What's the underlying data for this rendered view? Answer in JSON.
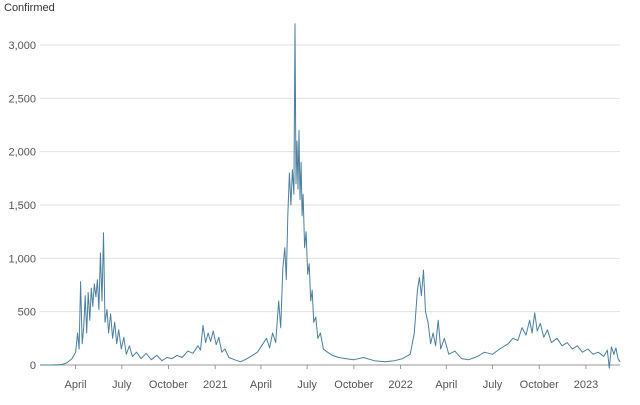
{
  "chart_data": {
    "type": "line",
    "ylabel": "Confirmed",
    "ylim": [
      0,
      3000
    ],
    "y_ticks": [
      {
        "value": 0,
        "label": "0"
      },
      {
        "value": 500,
        "label": "500"
      },
      {
        "value": 1000,
        "label": "1,000"
      },
      {
        "value": 1500,
        "label": "1,500"
      },
      {
        "value": 2000,
        "label": "2,000"
      },
      {
        "value": 2500,
        "label": "2,500"
      },
      {
        "value": 3000,
        "label": "3,000"
      }
    ],
    "xlim": [
      "2020-01-22",
      "2023-03-09"
    ],
    "x_ticks": [
      {
        "date": "2020-04-01",
        "label": "April"
      },
      {
        "date": "2020-07-01",
        "label": "July"
      },
      {
        "date": "2020-10-01",
        "label": "October"
      },
      {
        "date": "2021-01-01",
        "label": "2021"
      },
      {
        "date": "2021-04-01",
        "label": "April"
      },
      {
        "date": "2021-07-01",
        "label": "July"
      },
      {
        "date": "2021-10-01",
        "label": "October"
      },
      {
        "date": "2022-01-01",
        "label": "2022"
      },
      {
        "date": "2022-04-01",
        "label": "April"
      },
      {
        "date": "2022-07-01",
        "label": "July"
      },
      {
        "date": "2022-10-01",
        "label": "October"
      },
      {
        "date": "2023-01-01",
        "label": "2023"
      }
    ],
    "grid": "horizontal",
    "line_color": "#4c7f9f",
    "series": [
      {
        "values": [
          [
            "2020-01-22",
            0
          ],
          [
            "2020-02-15",
            0
          ],
          [
            "2020-03-05",
            5
          ],
          [
            "2020-03-15",
            20
          ],
          [
            "2020-03-25",
            60
          ],
          [
            "2020-04-01",
            120
          ],
          [
            "2020-04-05",
            300
          ],
          [
            "2020-04-08",
            150
          ],
          [
            "2020-04-11",
            780
          ],
          [
            "2020-04-14",
            200
          ],
          [
            "2020-04-17",
            350
          ],
          [
            "2020-04-20",
            650
          ],
          [
            "2020-04-23",
            300
          ],
          [
            "2020-04-26",
            680
          ],
          [
            "2020-04-29",
            420
          ],
          [
            "2020-05-02",
            720
          ],
          [
            "2020-05-05",
            550
          ],
          [
            "2020-05-08",
            760
          ],
          [
            "2020-05-11",
            640
          ],
          [
            "2020-05-14",
            800
          ],
          [
            "2020-05-17",
            520
          ],
          [
            "2020-05-20",
            1050
          ],
          [
            "2020-05-23",
            600
          ],
          [
            "2020-05-26",
            1240
          ],
          [
            "2020-05-29",
            400
          ],
          [
            "2020-06-02",
            520
          ],
          [
            "2020-06-05",
            300
          ],
          [
            "2020-06-09",
            480
          ],
          [
            "2020-06-13",
            250
          ],
          [
            "2020-06-17",
            400
          ],
          [
            "2020-06-21",
            200
          ],
          [
            "2020-06-25",
            330
          ],
          [
            "2020-06-30",
            150
          ],
          [
            "2020-07-05",
            260
          ],
          [
            "2020-07-10",
            100
          ],
          [
            "2020-07-16",
            180
          ],
          [
            "2020-07-22",
            80
          ],
          [
            "2020-07-30",
            120
          ],
          [
            "2020-08-08",
            60
          ],
          [
            "2020-08-18",
            110
          ],
          [
            "2020-08-28",
            50
          ],
          [
            "2020-09-08",
            90
          ],
          [
            "2020-09-18",
            40
          ],
          [
            "2020-09-28",
            70
          ],
          [
            "2020-10-08",
            60
          ],
          [
            "2020-10-18",
            90
          ],
          [
            "2020-10-28",
            70
          ],
          [
            "2020-11-08",
            130
          ],
          [
            "2020-11-18",
            110
          ],
          [
            "2020-11-28",
            180
          ],
          [
            "2020-12-03",
            140
          ],
          [
            "2020-12-08",
            370
          ],
          [
            "2020-12-13",
            210
          ],
          [
            "2020-12-18",
            300
          ],
          [
            "2020-12-23",
            220
          ],
          [
            "2020-12-28",
            320
          ],
          [
            "2021-01-03",
            190
          ],
          [
            "2021-01-08",
            260
          ],
          [
            "2021-01-14",
            120
          ],
          [
            "2021-01-20",
            150
          ],
          [
            "2021-01-28",
            70
          ],
          [
            "2021-02-08",
            50
          ],
          [
            "2021-02-20",
            30
          ],
          [
            "2021-03-05",
            60
          ],
          [
            "2021-03-15",
            90
          ],
          [
            "2021-03-25",
            120
          ],
          [
            "2021-04-05",
            200
          ],
          [
            "2021-04-12",
            250
          ],
          [
            "2021-04-18",
            160
          ],
          [
            "2021-04-24",
            300
          ],
          [
            "2021-04-30",
            210
          ],
          [
            "2021-05-06",
            600
          ],
          [
            "2021-05-10",
            350
          ],
          [
            "2021-05-14",
            900
          ],
          [
            "2021-05-18",
            1100
          ],
          [
            "2021-05-21",
            800
          ],
          [
            "2021-05-24",
            1400
          ],
          [
            "2021-05-27",
            1800
          ],
          [
            "2021-05-30",
            1500
          ],
          [
            "2021-06-02",
            1830
          ],
          [
            "2021-06-05",
            1600
          ],
          [
            "2021-06-07",
            3200
          ],
          [
            "2021-06-09",
            1700
          ],
          [
            "2021-06-11",
            2100
          ],
          [
            "2021-06-13",
            1650
          ],
          [
            "2021-06-15",
            2200
          ],
          [
            "2021-06-17",
            1550
          ],
          [
            "2021-06-19",
            1900
          ],
          [
            "2021-06-21",
            1400
          ],
          [
            "2021-06-23",
            1600
          ],
          [
            "2021-06-26",
            1100
          ],
          [
            "2021-06-29",
            1250
          ],
          [
            "2021-07-02",
            850
          ],
          [
            "2021-07-05",
            950
          ],
          [
            "2021-07-08",
            600
          ],
          [
            "2021-07-11",
            700
          ],
          [
            "2021-07-14",
            400
          ],
          [
            "2021-07-18",
            450
          ],
          [
            "2021-07-22",
            250
          ],
          [
            "2021-07-27",
            300
          ],
          [
            "2021-08-02",
            150
          ],
          [
            "2021-08-10",
            120
          ],
          [
            "2021-08-20",
            90
          ],
          [
            "2021-09-01",
            70
          ],
          [
            "2021-09-15",
            60
          ],
          [
            "2021-10-01",
            50
          ],
          [
            "2021-10-20",
            70
          ],
          [
            "2021-11-10",
            40
          ],
          [
            "2021-12-01",
            30
          ],
          [
            "2021-12-20",
            40
          ],
          [
            "2022-01-05",
            60
          ],
          [
            "2022-01-20",
            100
          ],
          [
            "2022-01-28",
            300
          ],
          [
            "2022-02-03",
            700
          ],
          [
            "2022-02-07",
            820
          ],
          [
            "2022-02-11",
            650
          ],
          [
            "2022-02-15",
            890
          ],
          [
            "2022-02-19",
            500
          ],
          [
            "2022-02-24",
            400
          ],
          [
            "2022-03-01",
            200
          ],
          [
            "2022-03-06",
            300
          ],
          [
            "2022-03-11",
            180
          ],
          [
            "2022-03-16",
            420
          ],
          [
            "2022-03-21",
            150
          ],
          [
            "2022-03-28",
            250
          ],
          [
            "2022-04-06",
            100
          ],
          [
            "2022-04-18",
            130
          ],
          [
            "2022-05-01",
            60
          ],
          [
            "2022-05-15",
            50
          ],
          [
            "2022-06-01",
            80
          ],
          [
            "2022-06-15",
            120
          ],
          [
            "2022-07-01",
            100
          ],
          [
            "2022-07-15",
            150
          ],
          [
            "2022-08-01",
            200
          ],
          [
            "2022-08-10",
            250
          ],
          [
            "2022-08-20",
            230
          ],
          [
            "2022-08-28",
            350
          ],
          [
            "2022-09-05",
            280
          ],
          [
            "2022-09-12",
            420
          ],
          [
            "2022-09-17",
            300
          ],
          [
            "2022-09-22",
            490
          ],
          [
            "2022-09-27",
            320
          ],
          [
            "2022-10-03",
            390
          ],
          [
            "2022-10-10",
            260
          ],
          [
            "2022-10-17",
            330
          ],
          [
            "2022-10-25",
            210
          ],
          [
            "2022-11-05",
            250
          ],
          [
            "2022-11-15",
            180
          ],
          [
            "2022-11-25",
            210
          ],
          [
            "2022-12-05",
            150
          ],
          [
            "2022-12-15",
            180
          ],
          [
            "2022-12-25",
            120
          ],
          [
            "2023-01-05",
            150
          ],
          [
            "2023-01-15",
            100
          ],
          [
            "2023-01-25",
            120
          ],
          [
            "2023-02-05",
            80
          ],
          [
            "2023-02-12",
            140
          ],
          [
            "2023-02-16",
            -30
          ],
          [
            "2023-02-20",
            170
          ],
          [
            "2023-02-25",
            100
          ],
          [
            "2023-03-01",
            160
          ],
          [
            "2023-03-05",
            60
          ],
          [
            "2023-03-09",
            30
          ]
        ]
      }
    ]
  }
}
